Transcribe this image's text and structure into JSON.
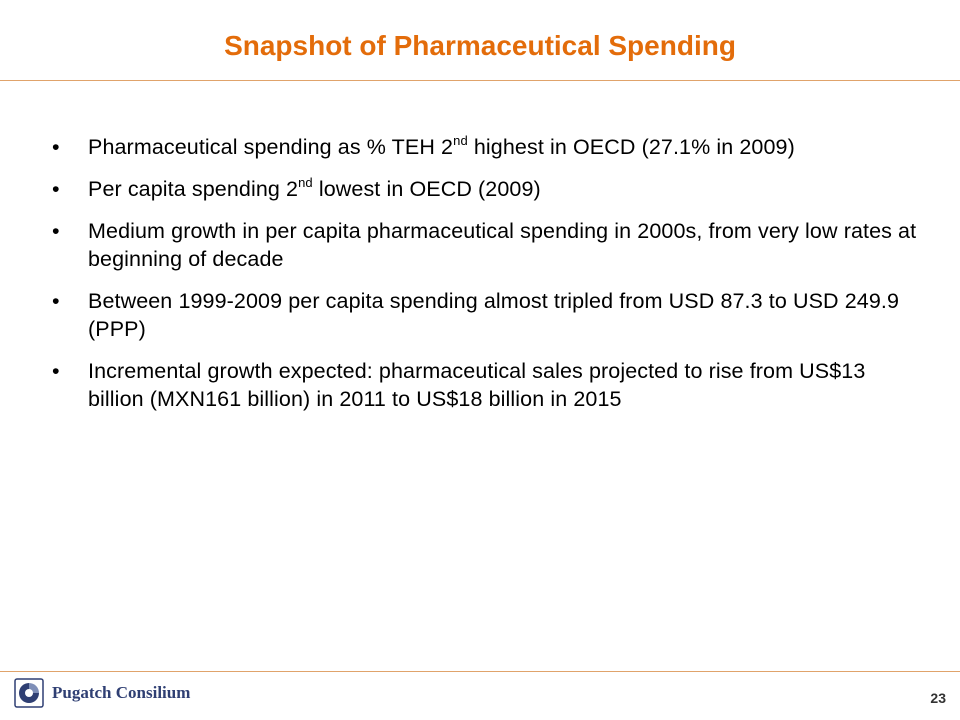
{
  "slide": {
    "title": "Snapshot of Pharmaceutical Spending",
    "bullets": [
      {
        "pre": "Pharmaceutical spending as % TEH 2",
        "sup": "nd",
        "post": " highest in OECD (27.1% in 2009)"
      },
      {
        "pre": "Per capita spending 2",
        "sup": "nd",
        "post": " lowest in OECD (2009)"
      },
      {
        "pre": "Medium growth in per capita pharmaceutical spending in 2000s, from very low rates at beginning of decade"
      },
      {
        "pre": "Between 1999-2009 per capita spending almost tripled from USD 87.3 to USD 249.9 (PPP)"
      },
      {
        "pre": "Incremental growth expected: pharmaceutical sales projected to rise from US$13 billion  (MXN161 billion) in 2011 to US$18 billion in 2015"
      }
    ],
    "bullet_glyph": "•"
  },
  "footer": {
    "logo_text": "Pugatch Consilium",
    "page_number": "23"
  },
  "colors": {
    "title": "#e36c0a",
    "rule": "#e0a36b",
    "logo": "#2f3f73"
  }
}
